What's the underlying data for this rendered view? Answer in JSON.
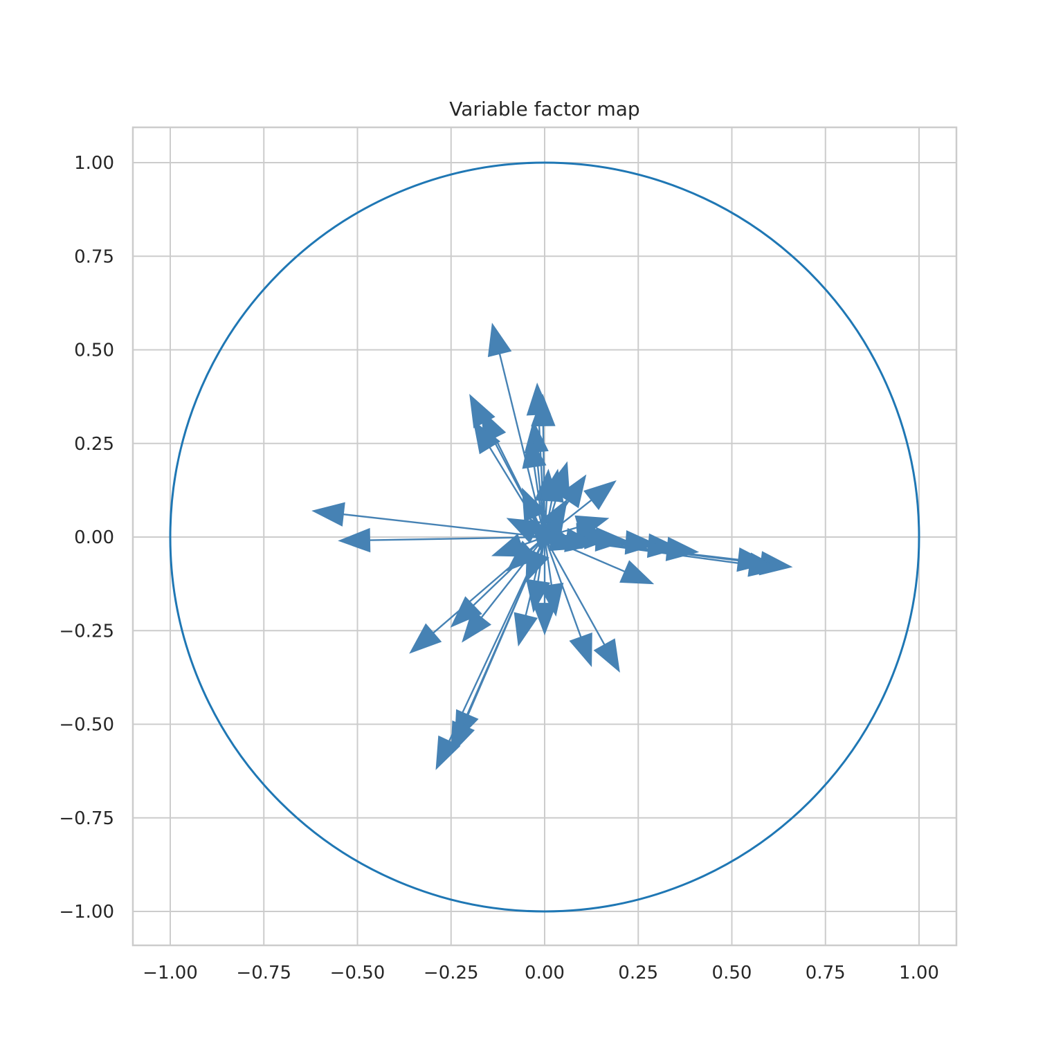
{
  "chart_data": {
    "type": "scatter",
    "title": "Variable factor map",
    "xlabel": "",
    "ylabel": "",
    "xlim": [
      -1.1,
      1.1
    ],
    "ylim": [
      -1.1,
      1.1
    ],
    "grid": true,
    "legend": "none",
    "x_ticks": [
      -1.0,
      -0.75,
      -0.5,
      -0.25,
      0.0,
      0.25,
      0.5,
      0.75,
      1.0
    ],
    "x_tick_labels": [
      "−1.00",
      "−0.75",
      "−0.50",
      "−0.25",
      "0.00",
      "0.25",
      "0.50",
      "0.75",
      "1.00"
    ],
    "y_ticks": [
      1.0,
      0.75,
      0.5,
      0.25,
      0.0,
      -0.25,
      -0.5,
      -0.75,
      -1.0
    ],
    "y_tick_labels": [
      "1.00",
      "0.75",
      "0.50",
      "0.25",
      "0.00",
      "−0.25",
      "−0.50",
      "−0.75",
      "−1.00"
    ],
    "circle": {
      "center": [
        0,
        0
      ],
      "radius": 1.0,
      "color": "#1f77b4"
    },
    "arrow_color": "#4682b4",
    "vectors": [
      {
        "x": 0.66,
        "y": -0.08
      },
      {
        "x": 0.63,
        "y": -0.085
      },
      {
        "x": 0.6,
        "y": -0.07
      },
      {
        "x": 0.41,
        "y": -0.04
      },
      {
        "x": 0.36,
        "y": -0.03
      },
      {
        "x": 0.3,
        "y": -0.02
      },
      {
        "x": 0.29,
        "y": -0.125
      },
      {
        "x": 0.22,
        "y": -0.01
      },
      {
        "x": 0.19,
        "y": 0.0
      },
      {
        "x": 0.17,
        "y": 0.01
      },
      {
        "x": 0.17,
        "y": 0.05
      },
      {
        "x": 0.14,
        "y": -0.02
      },
      {
        "x": 0.1,
        "y": -0.03
      },
      {
        "x": 0.2,
        "y": -0.36
      },
      {
        "x": 0.125,
        "y": -0.345
      },
      {
        "x": 0.19,
        "y": 0.15
      },
      {
        "x": 0.11,
        "y": 0.165
      },
      {
        "x": 0.06,
        "y": 0.1
      },
      {
        "x": 0.06,
        "y": 0.2
      },
      {
        "x": 0.035,
        "y": 0.18
      },
      {
        "x": 0.01,
        "y": 0.18
      },
      {
        "x": -0.02,
        "y": 0.41
      },
      {
        "x": -0.005,
        "y": 0.38
      },
      {
        "x": -0.03,
        "y": 0.31
      },
      {
        "x": -0.04,
        "y": 0.27
      },
      {
        "x": -0.14,
        "y": 0.57
      },
      {
        "x": -0.2,
        "y": 0.38
      },
      {
        "x": -0.17,
        "y": 0.34
      },
      {
        "x": -0.19,
        "y": 0.31
      },
      {
        "x": -0.06,
        "y": 0.13
      },
      {
        "x": -0.1,
        "y": 0.05
      },
      {
        "x": -0.62,
        "y": 0.07
      },
      {
        "x": -0.55,
        "y": -0.01
      },
      {
        "x": -0.36,
        "y": -0.31
      },
      {
        "x": -0.25,
        "y": -0.24
      },
      {
        "x": -0.22,
        "y": -0.28
      },
      {
        "x": -0.14,
        "y": -0.05
      },
      {
        "x": -0.1,
        "y": -0.09
      },
      {
        "x": -0.07,
        "y": -0.29
      },
      {
        "x": 0.0,
        "y": -0.26
      },
      {
        "x": 0.03,
        "y": -0.21
      },
      {
        "x": -0.03,
        "y": -0.2
      },
      {
        "x": -0.24,
        "y": -0.55
      },
      {
        "x": -0.25,
        "y": -0.58
      },
      {
        "x": -0.29,
        "y": -0.62
      },
      {
        "x": -0.05,
        "y": -0.12
      },
      {
        "x": 0.05,
        "y": 0.06
      },
      {
        "x": -0.04,
        "y": 0.05
      }
    ]
  }
}
